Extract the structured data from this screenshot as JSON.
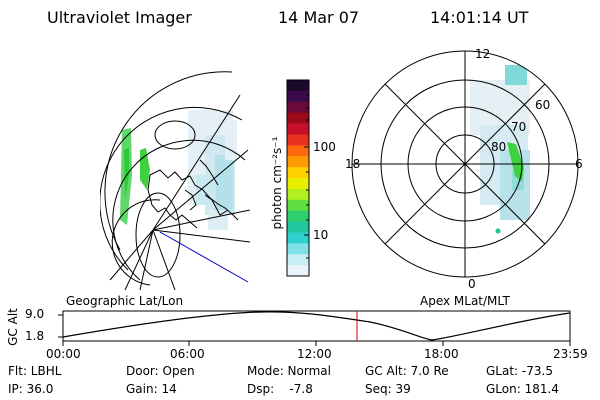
{
  "header": {
    "instrument": "Ultraviolet Imager",
    "date": "14 Mar 07",
    "time": "14:01:14 UT"
  },
  "colorbar": {
    "unit_label": "photon cm⁻²s⁻¹",
    "ticks": [
      "100",
      "10"
    ],
    "colors": [
      "#1a0a2a",
      "#3a0a4a",
      "#6a0a3a",
      "#9a0a1a",
      "#c8102a",
      "#e83020",
      "#ff6a10",
      "#ff9a00",
      "#ffd000",
      "#e8f000",
      "#b0f020",
      "#60e040",
      "#30d070",
      "#20c8a0",
      "#30d0d0",
      "#80e0e8",
      "#c8eef4",
      "#e8f4f8"
    ]
  },
  "polar": {
    "clock_labels": [
      "12",
      "18",
      "6",
      "0"
    ],
    "lat_labels": [
      "60",
      "70",
      "80"
    ]
  },
  "timeline": {
    "left_title": "Geographic Lat/Lon",
    "right_title": "Apex MLat/MLT",
    "axis_label": "GC Alt",
    "y_labels": [
      "9.0",
      "1.8"
    ],
    "x_labels": [
      "00:00",
      "06:00",
      "12:00",
      "18:00",
      "23:59"
    ],
    "cursor_color": "#cc0000"
  },
  "footer": {
    "row1": [
      "Flt: LBHL",
      "Door: Open",
      "Mode: Normal",
      "GC Alt: 7.0 Re",
      "GLat: -73.5"
    ],
    "row2": [
      "IP: 36.0",
      "Gain: 14",
      "Dsp:    -7.8",
      "Seq: 39",
      "GLon: 181.4"
    ]
  }
}
